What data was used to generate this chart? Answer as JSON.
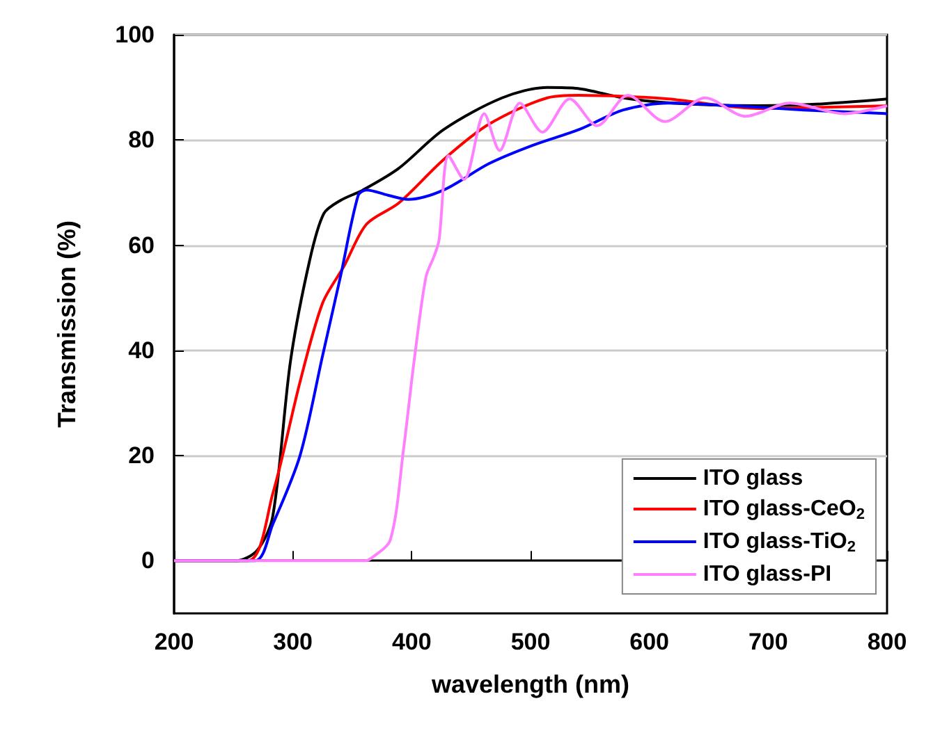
{
  "chart_data": {
    "type": "line",
    "xlabel": "wavelength (nm)",
    "ylabel": "Transmission (%)",
    "xlim": [
      200,
      800
    ],
    "xticks": [
      200,
      300,
      400,
      500,
      600,
      700,
      800
    ],
    "ylim": [
      -10,
      100
    ],
    "yticks": [
      0,
      20,
      40,
      60,
      80,
      100
    ],
    "grid": "y",
    "legend": "bottom right",
    "marker": "none",
    "line_style": "solid",
    "series": [
      {
        "name": "ITO glass",
        "color": "#000000",
        "x": [
          200,
          252,
          270,
          283,
          298,
          314,
          326,
          340,
          359,
          389,
          427,
          476,
          514,
          540,
          578,
          620,
          692,
          740,
          800
        ],
        "values": [
          0,
          0,
          2,
          8.4,
          38,
          57,
          66,
          68.5,
          70.5,
          74.6,
          82,
          88,
          90,
          89.8,
          88,
          87,
          86.5,
          86.8,
          87.8
        ]
      },
      {
        "name": "ITO glass-CeO$_{2}$",
        "color": "#ff0000",
        "x": [
          200,
          262,
          283,
          306,
          325,
          343,
          362,
          389,
          427,
          465,
          514,
          541,
          578,
          616,
          692,
          740,
          800
        ],
        "values": [
          0,
          0,
          12.7,
          34,
          49,
          56,
          64,
          68,
          76.3,
          83,
          88,
          88.5,
          88.3,
          87.8,
          86,
          86.2,
          86.5
        ]
      },
      {
        "name": "ITO glass-TiO$_{2}$",
        "color": "#0000ff",
        "x": [
          200,
          268,
          283,
          306,
          325,
          340,
          355,
          362,
          380,
          397,
          427,
          465,
          502,
          541,
          578,
          616,
          670,
          730,
          800
        ],
        "values": [
          0,
          0,
          6.9,
          20,
          39,
          54,
          69.5,
          70.5,
          69.5,
          68.7,
          70.5,
          75.5,
          79,
          82,
          85.7,
          87,
          86.5,
          85.7,
          85
        ]
      },
      {
        "name": "ITO glass-PI",
        "color": "#ff80ff",
        "x": [
          200,
          360,
          366,
          382,
          393,
          402,
          412,
          419,
          423,
          431,
          444,
          461,
          474,
          491,
          510,
          533,
          556,
          582,
          613,
          647,
          681,
          718,
          764,
          800
        ],
        "values": [
          0,
          0,
          0.5,
          4,
          21,
          38,
          54,
          58,
          61,
          77,
          72.5,
          85,
          78,
          87,
          81.5,
          87.8,
          82.7,
          88.5,
          83.5,
          88,
          84.5,
          87,
          85,
          86.5
        ]
      }
    ]
  }
}
